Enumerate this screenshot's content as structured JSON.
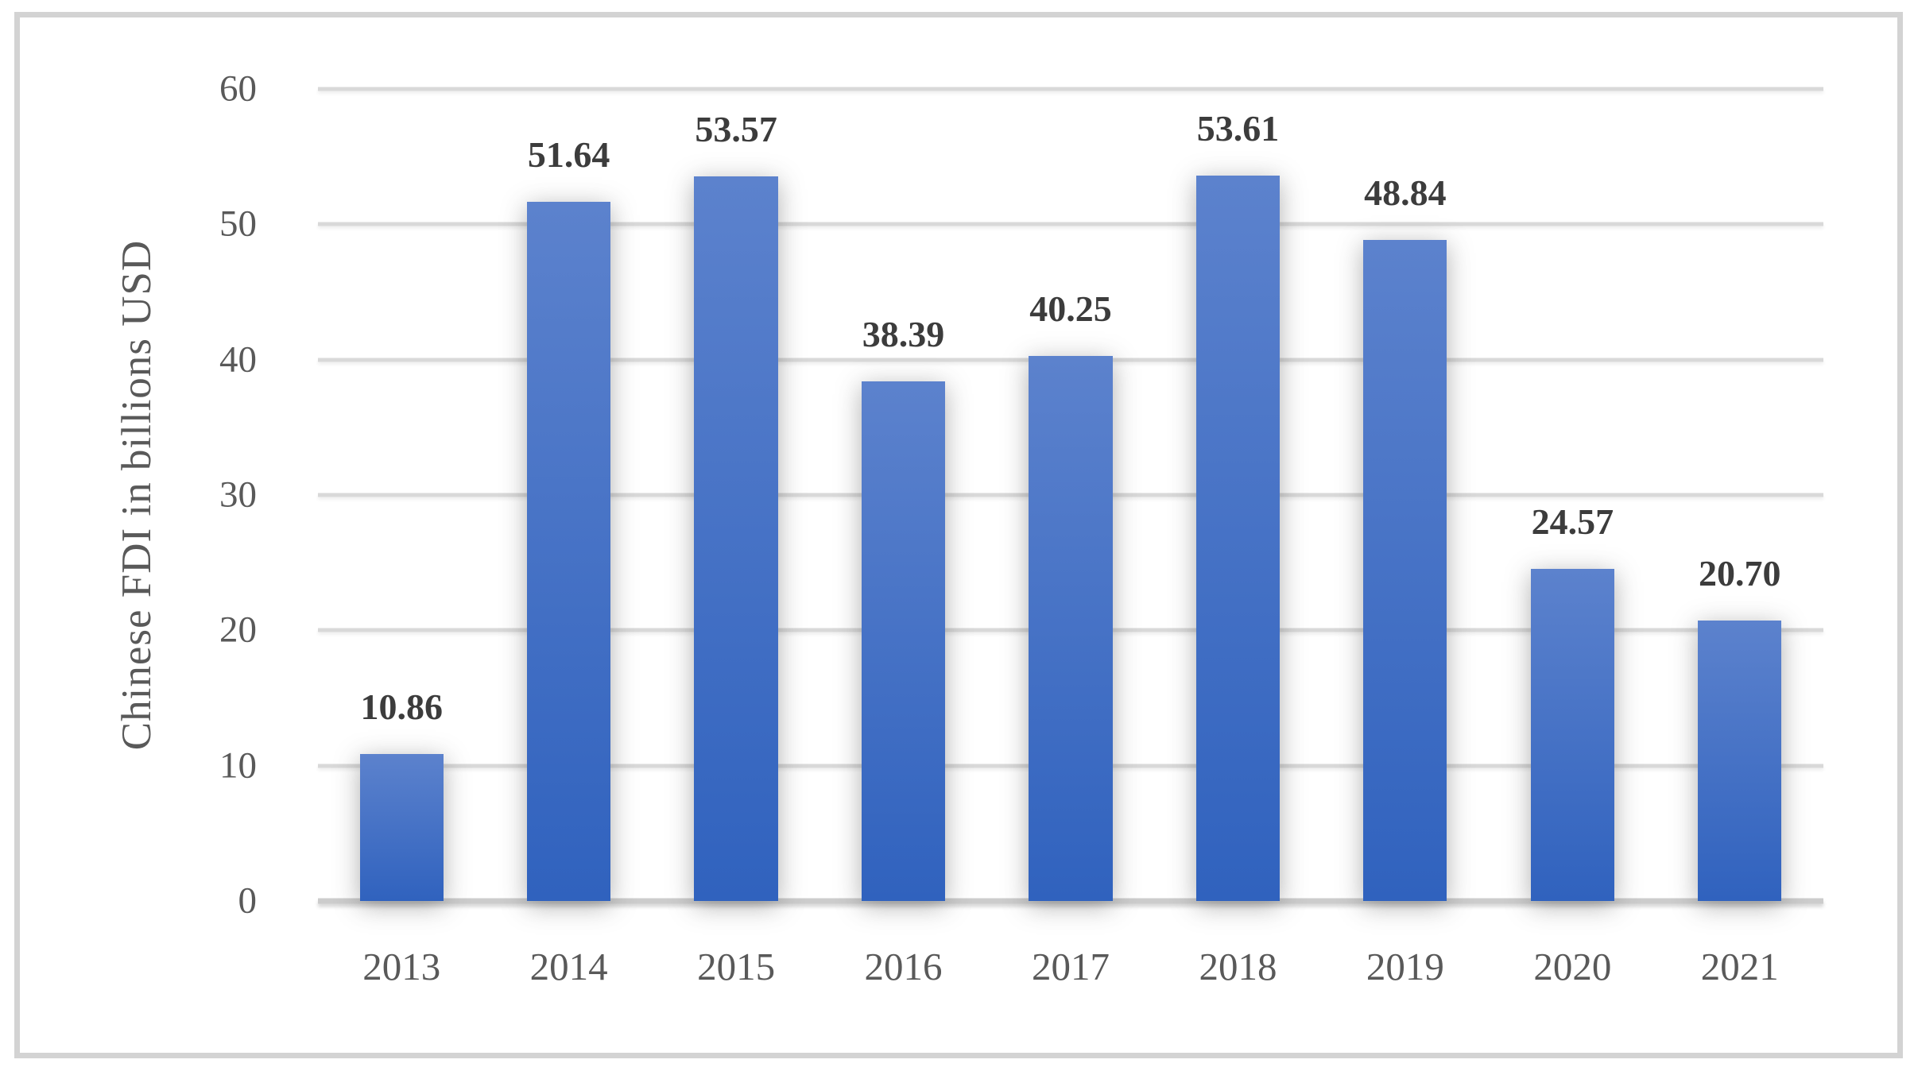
{
  "chart_data": {
    "type": "bar",
    "title": "",
    "xlabel": "",
    "ylabel": "Chinese FDI in billions USD",
    "categories": [
      "2013",
      "2014",
      "2015",
      "2016",
      "2017",
      "2018",
      "2019",
      "2020",
      "2021"
    ],
    "values": [
      10.86,
      51.64,
      53.57,
      38.39,
      40.25,
      53.61,
      48.84,
      24.57,
      20.7
    ],
    "value_labels": [
      "10.86",
      "51.64",
      "53.57",
      "38.39",
      "40.25",
      "53.61",
      "48.84",
      "24.57",
      "20.70"
    ],
    "ylim": [
      0,
      60
    ],
    "yticks": [
      0,
      10,
      20,
      30,
      40,
      50,
      60
    ],
    "grid": "horizontal-gridlines-on",
    "legend_position": "none",
    "series_name": "Chinese FDI"
  },
  "colors": {
    "background": "#ffffff",
    "frame_border": "#d3d3d3",
    "bar_gradient_top": "#5c82cd",
    "bar_gradient_bottom": "#3062be",
    "gridline": "#d9d9d9",
    "axis_line": "#cccccc",
    "tick_text": "#595959",
    "value_label_text": "#3c3c3c"
  }
}
